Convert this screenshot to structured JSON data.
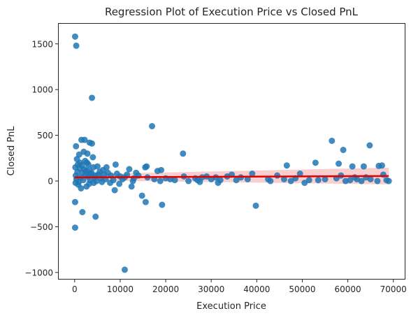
{
  "chart_data": {
    "type": "scatter",
    "title": "Regression Plot of Execution Price vs Closed PnL",
    "xlabel": "Execution Price",
    "ylabel": "Closed PnL",
    "xlim": [
      -3500,
      72500
    ],
    "ylim": [
      -1070,
      1720
    ],
    "xticks": [
      0,
      10000,
      20000,
      30000,
      40000,
      50000,
      60000,
      70000
    ],
    "yticks": [
      -1000,
      -500,
      0,
      500,
      1000,
      1500
    ],
    "xtick_labels": [
      "0",
      "10000",
      "20000",
      "30000",
      "40000",
      "50000",
      "60000",
      "70000"
    ],
    "ytick_labels": [
      "−1000",
      "−500",
      "0",
      "500",
      "1000",
      "1500"
    ],
    "grid": false,
    "colors": {
      "points": "#1f77b4",
      "regression_line": "#e00000",
      "confidence_band": "#f4a6a6"
    },
    "regression": {
      "x": [
        0,
        69000
      ],
      "y": [
        40,
        55
      ]
    },
    "points": [
      [
        100,
        1580
      ],
      [
        350,
        1480
      ],
      [
        3800,
        910
      ],
      [
        17000,
        600
      ],
      [
        56500,
        440
      ],
      [
        1500,
        450
      ],
      [
        2200,
        450
      ],
      [
        3300,
        420
      ],
      [
        3800,
        410
      ],
      [
        59000,
        340
      ],
      [
        64800,
        390
      ],
      [
        300,
        380
      ],
      [
        23800,
        300
      ],
      [
        2000,
        320
      ],
      [
        2800,
        300
      ],
      [
        1000,
        290
      ],
      [
        500,
        240
      ],
      [
        4000,
        260
      ],
      [
        1200,
        200
      ],
      [
        2300,
        220
      ],
      [
        3000,
        180
      ],
      [
        5000,
        160
      ],
      [
        7000,
        150
      ],
      [
        9000,
        180
      ],
      [
        12000,
        130
      ],
      [
        15500,
        150
      ],
      [
        15800,
        160
      ],
      [
        18200,
        110
      ],
      [
        19000,
        120
      ],
      [
        46600,
        170
      ],
      [
        52900,
        200
      ],
      [
        58000,
        190
      ],
      [
        61000,
        160
      ],
      [
        63500,
        160
      ],
      [
        67500,
        170
      ],
      [
        66800,
        165
      ],
      [
        600,
        100
      ],
      [
        1700,
        90
      ],
      [
        2500,
        110
      ],
      [
        3500,
        80
      ],
      [
        4500,
        60
      ],
      [
        5500,
        100
      ],
      [
        6500,
        70
      ],
      [
        8000,
        60
      ],
      [
        10000,
        50
      ],
      [
        11000,
        40
      ],
      [
        13000,
        30
      ],
      [
        14000,
        60
      ],
      [
        16000,
        40
      ],
      [
        20000,
        30
      ],
      [
        21000,
        20
      ],
      [
        22000,
        10
      ],
      [
        24000,
        50
      ],
      [
        27000,
        10
      ],
      [
        28000,
        40
      ],
      [
        29000,
        50
      ],
      [
        30000,
        20
      ],
      [
        31000,
        40
      ],
      [
        32000,
        10
      ],
      [
        33500,
        50
      ],
      [
        34500,
        70
      ],
      [
        35500,
        10
      ],
      [
        39000,
        80
      ],
      [
        42500,
        20
      ],
      [
        43000,
        0
      ],
      [
        46000,
        20
      ],
      [
        47500,
        0
      ],
      [
        48500,
        30
      ],
      [
        49500,
        80
      ],
      [
        50500,
        -20
      ],
      [
        51500,
        10
      ],
      [
        55000,
        20
      ],
      [
        57500,
        30
      ],
      [
        59500,
        0
      ],
      [
        60500,
        10
      ],
      [
        62000,
        20
      ],
      [
        63000,
        0
      ],
      [
        64000,
        40
      ],
      [
        65000,
        20
      ],
      [
        66500,
        0
      ],
      [
        67800,
        70
      ],
      [
        68500,
        10
      ],
      [
        69000,
        0
      ],
      [
        27500,
        -10
      ],
      [
        31500,
        -20
      ],
      [
        200,
        -20
      ],
      [
        800,
        -40
      ],
      [
        1400,
        -80
      ],
      [
        2600,
        -60
      ],
      [
        3200,
        -30
      ],
      [
        4200,
        -20
      ],
      [
        6000,
        -10
      ],
      [
        7800,
        -20
      ],
      [
        8800,
        -100
      ],
      [
        9800,
        -30
      ],
      [
        12500,
        -60
      ],
      [
        14800,
        -160
      ],
      [
        15600,
        -230
      ],
      [
        19200,
        -260
      ],
      [
        100,
        -230
      ],
      [
        1700,
        -340
      ],
      [
        4600,
        -390
      ],
      [
        100,
        -510
      ],
      [
        39800,
        -270
      ],
      [
        11000,
        -970
      ],
      [
        150,
        150
      ],
      [
        250,
        60
      ],
      [
        400,
        20
      ],
      [
        700,
        180
      ],
      [
        900,
        -10
      ],
      [
        1100,
        140
      ],
      [
        1300,
        40
      ],
      [
        1600,
        170
      ],
      [
        1900,
        10
      ],
      [
        2100,
        130
      ],
      [
        2400,
        70
      ],
      [
        2700,
        200
      ],
      [
        2900,
        50
      ],
      [
        3100,
        120
      ],
      [
        3400,
        10
      ],
      [
        3700,
        90
      ],
      [
        4100,
        150
      ],
      [
        4400,
        40
      ],
      [
        4800,
        0
      ],
      [
        5200,
        70
      ],
      [
        5800,
        30
      ],
      [
        6200,
        120
      ],
      [
        6800,
        20
      ],
      [
        7300,
        90
      ],
      [
        8500,
        10
      ],
      [
        9300,
        80
      ],
      [
        10500,
        20
      ],
      [
        11500,
        70
      ],
      [
        12800,
        0
      ],
      [
        13500,
        90
      ],
      [
        17500,
        20
      ],
      [
        18800,
        0
      ],
      [
        25000,
        0
      ],
      [
        26500,
        30
      ],
      [
        36500,
        40
      ],
      [
        38000,
        20
      ],
      [
        44500,
        60
      ],
      [
        53500,
        10
      ],
      [
        58500,
        60
      ],
      [
        61500,
        40
      ]
    ]
  }
}
